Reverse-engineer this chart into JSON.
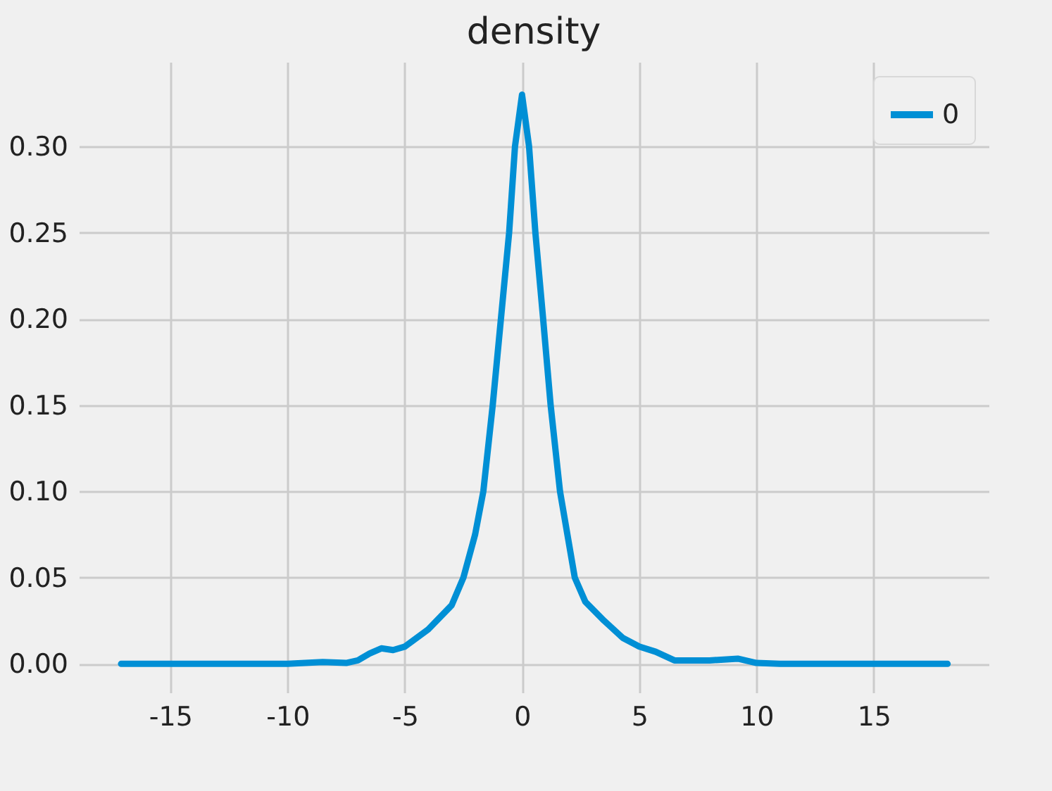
{
  "chart_data": {
    "type": "line",
    "title": "density",
    "x": [
      -17.1,
      -10,
      -8.5,
      -7.5,
      -7,
      -6.5,
      -6,
      -5.5,
      -5,
      -4,
      -3,
      -2.5,
      -2,
      -1.65,
      -1.25,
      -0.9,
      -0.55,
      -0.3,
      0,
      0.3,
      0.57,
      0.9,
      1.22,
      1.62,
      2.25,
      2.7,
      3.5,
      4.3,
      5,
      5.7,
      6.5,
      8,
      9.2,
      10,
      11,
      18.15
    ],
    "series": [
      {
        "name": "0",
        "color": "#008fd5",
        "values": [
          0,
          0,
          0.001,
          0.0005,
          0.002,
          0.006,
          0.009,
          0.008,
          0.01,
          0.02,
          0.034,
          0.05,
          0.075,
          0.1,
          0.15,
          0.2,
          0.25,
          0.3,
          0.33,
          0.3,
          0.25,
          0.2,
          0.15,
          0.1,
          0.05,
          0.036,
          0.025,
          0.015,
          0.01,
          0.007,
          0.002,
          0.002,
          0.003,
          0.0005,
          0,
          0
        ]
      }
    ],
    "xlim": [
      -18.9,
      19.9
    ],
    "xticks": [
      -15,
      -10,
      -5,
      0,
      5,
      10,
      15
    ],
    "ylim": [
      -0.0166,
      0.349
    ],
    "yticks": [
      {
        "value": 0,
        "label": "0.00"
      },
      {
        "value": 0.05,
        "label": "0.05"
      },
      {
        "value": 0.1,
        "label": "0.10"
      },
      {
        "value": 0.15,
        "label": "0.15"
      },
      {
        "value": 0.2,
        "label": "0.20"
      },
      {
        "value": 0.25,
        "label": "0.25"
      },
      {
        "value": 0.3,
        "label": "0.30"
      }
    ],
    "grid": true,
    "legend": "top right",
    "marker": "none",
    "line_style": "solid"
  }
}
